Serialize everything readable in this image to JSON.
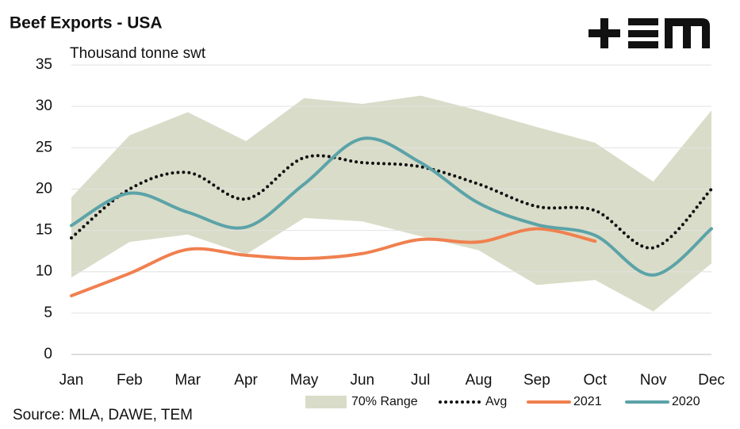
{
  "chart_data": {
    "type": "line",
    "title": "Beef Exports - USA",
    "subtitle": "Thousand tonne swt",
    "source": "Source: MLA, DAWE, TEM",
    "categories": [
      "Jan",
      "Feb",
      "Mar",
      "Apr",
      "May",
      "Jun",
      "Jul",
      "Aug",
      "Sep",
      "Oct",
      "Nov",
      "Dec"
    ],
    "ylim": [
      0,
      35
    ],
    "yticks": [
      0,
      5,
      10,
      15,
      20,
      25,
      30,
      35
    ],
    "grid": true,
    "range": {
      "name": "70% Range",
      "color": "#d9dcc8",
      "upper": [
        19,
        26.5,
        29.3,
        25.8,
        31,
        30.3,
        31.3,
        29.5,
        27.5,
        25.6,
        20.9,
        29.5
      ],
      "lower": [
        9.3,
        13.6,
        14.5,
        12.1,
        16.5,
        16.1,
        14.3,
        12.6,
        8.4,
        9,
        5.2,
        11
      ]
    },
    "series": [
      {
        "name": "Avg",
        "color": "#111111",
        "dotted": true,
        "values": [
          14.1,
          20,
          22,
          18.8,
          23.8,
          23.2,
          22.7,
          20.6,
          17.9,
          17.4,
          12.9,
          20
        ]
      },
      {
        "name": "2021",
        "color": "#f0804f",
        "values": [
          7.1,
          9.8,
          12.7,
          12,
          11.6,
          12.2,
          13.9,
          13.6,
          15.2,
          13.7,
          null,
          null
        ]
      },
      {
        "name": "2020",
        "color": "#5ba3a8",
        "values": [
          15.6,
          19.5,
          17.2,
          15.4,
          20.6,
          26.1,
          23.2,
          18.3,
          15.7,
          14.4,
          9.6,
          15.2
        ]
      }
    ]
  }
}
